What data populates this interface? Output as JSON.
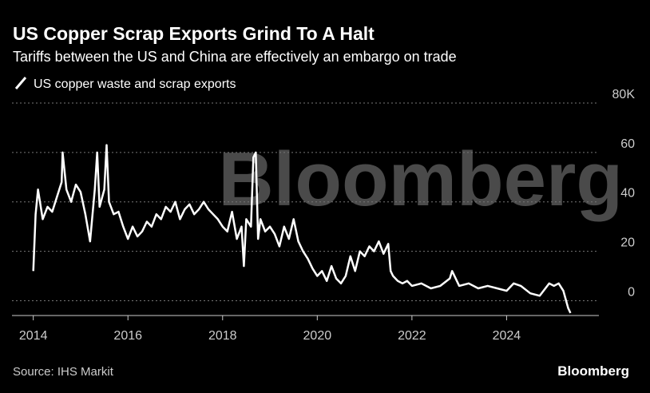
{
  "chart_data": {
    "type": "line",
    "title": "US Copper Scrap Exports Grind To A Halt",
    "subtitle": "Tariffs between the US and China are effectively an embargo on trade",
    "source": "Source: IHS Markit",
    "watermark": "Bloomberg",
    "logo": "Bloomberg",
    "x": [
      2014.0,
      2014.05,
      2014.1,
      2014.2,
      2014.3,
      2014.4,
      2014.5,
      2014.6,
      2014.62,
      2014.7,
      2014.8,
      2014.9,
      2015.0,
      2015.1,
      2015.2,
      2015.3,
      2015.35,
      2015.4,
      2015.5,
      2015.55,
      2015.6,
      2015.7,
      2015.8,
      2015.9,
      2016.0,
      2016.1,
      2016.2,
      2016.3,
      2016.4,
      2016.5,
      2016.6,
      2016.7,
      2016.8,
      2016.9,
      2017.0,
      2017.1,
      2017.2,
      2017.3,
      2017.4,
      2017.5,
      2017.6,
      2017.7,
      2017.8,
      2017.9,
      2018.0,
      2018.1,
      2018.2,
      2018.3,
      2018.4,
      2018.45,
      2018.5,
      2018.6,
      2018.65,
      2018.7,
      2018.75,
      2018.8,
      2018.9,
      2019.0,
      2019.1,
      2019.2,
      2019.3,
      2019.4,
      2019.5,
      2019.6,
      2019.7,
      2019.8,
      2019.9,
      2020.0,
      2020.1,
      2020.2,
      2020.3,
      2020.4,
      2020.5,
      2020.6,
      2020.7,
      2020.8,
      2020.9,
      2021.0,
      2021.1,
      2021.2,
      2021.3,
      2021.4,
      2021.5,
      2021.55,
      2021.6,
      2021.7,
      2021.8,
      2021.9,
      2022.0,
      2022.2,
      2022.4,
      2022.6,
      2022.8,
      2022.85,
      2023.0,
      2023.2,
      2023.4,
      2023.6,
      2023.8,
      2024.0,
      2024.15,
      2024.3,
      2024.5,
      2024.7,
      2024.9,
      2025.0,
      2025.1,
      2025.2,
      2025.3,
      2025.35
    ],
    "series": [
      {
        "name": "US copper waste and scrap exports",
        "color": "#ffffff",
        "values": [
          12,
          35,
          45,
          33,
          38,
          36,
          42,
          48,
          60,
          45,
          40,
          47,
          44,
          35,
          24,
          45,
          60,
          38,
          45,
          63,
          40,
          35,
          36,
          30,
          25,
          30,
          26,
          28,
          32,
          30,
          35,
          33,
          38,
          36,
          40,
          33,
          37,
          39,
          35,
          37,
          40,
          37,
          35,
          33,
          30,
          28,
          36,
          25,
          30,
          14,
          33,
          30,
          58,
          60,
          25,
          33,
          28,
          30,
          27,
          22,
          30,
          25,
          33,
          24,
          20,
          17,
          13,
          10,
          12,
          8,
          14,
          9,
          7,
          10,
          18,
          12,
          20,
          18,
          22,
          20,
          24,
          19,
          23,
          12,
          10,
          8,
          7,
          8,
          6,
          7,
          5,
          6,
          9,
          12,
          6,
          7,
          5,
          6,
          5,
          4,
          7,
          6,
          3,
          2,
          7,
          6,
          7,
          4,
          -3,
          -5
        ]
      }
    ],
    "xlim": [
      2013.55,
      2025.95
    ],
    "xticks": [
      2014,
      2016,
      2018,
      2020,
      2022,
      2024
    ],
    "ylim": [
      -6,
      80
    ],
    "yticks": [
      0,
      20,
      40,
      60,
      {
        "value": 80,
        "label": "80K"
      }
    ],
    "grid": true
  }
}
